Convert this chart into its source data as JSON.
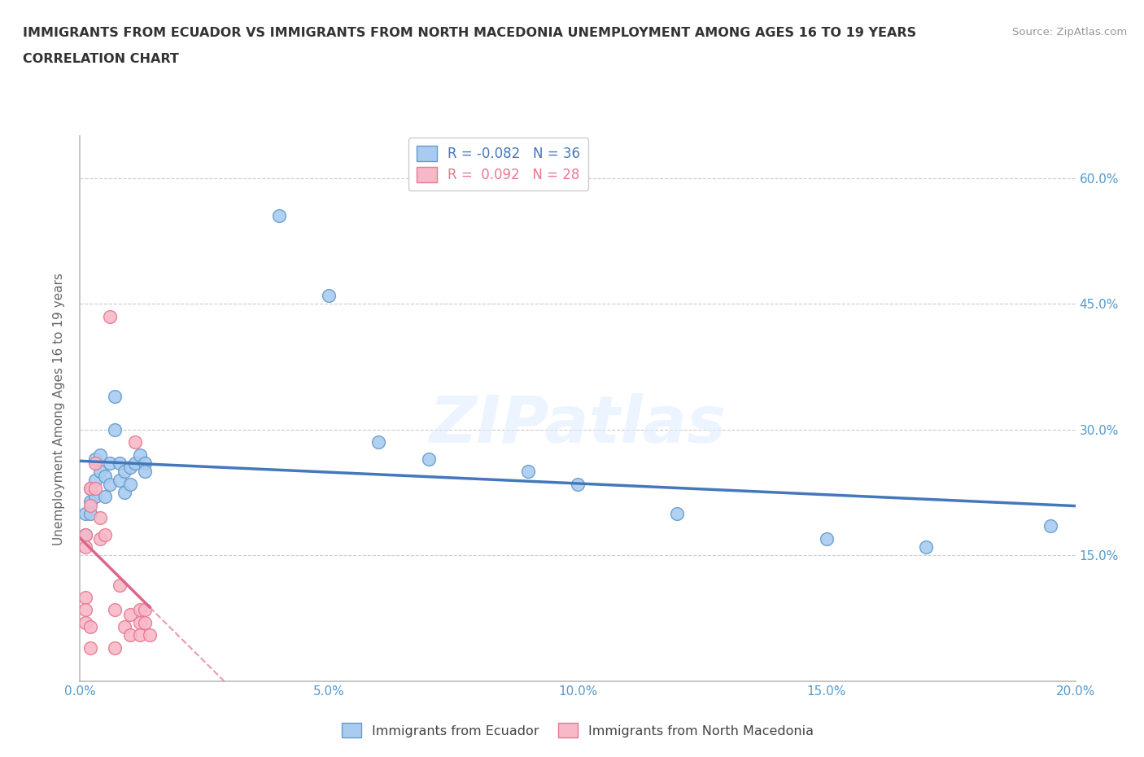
{
  "title_line1": "IMMIGRANTS FROM ECUADOR VS IMMIGRANTS FROM NORTH MACEDONIA UNEMPLOYMENT AMONG AGES 16 TO 19 YEARS",
  "title_line2": "CORRELATION CHART",
  "source": "Source: ZipAtlas.com",
  "ylabel": "Unemployment Among Ages 16 to 19 years",
  "xlim": [
    0.0,
    0.2
  ],
  "ylim": [
    0.0,
    0.65
  ],
  "ytick_positions": [
    0.15,
    0.3,
    0.45,
    0.6
  ],
  "ytick_labels": [
    "15.0%",
    "30.0%",
    "45.0%",
    "60.0%"
  ],
  "xtick_vals": [
    0.0,
    0.025,
    0.05,
    0.075,
    0.1,
    0.125,
    0.15,
    0.175,
    0.2
  ],
  "xtick_labels": [
    "0.0%",
    "",
    "5.0%",
    "",
    "10.0%",
    "",
    "15.0%",
    "",
    "20.0%"
  ],
  "watermark": "ZIPatlas",
  "ecuador_color": "#A8CCF0",
  "ecuador_edge": "#6699CC",
  "macedonia_color": "#F8B8C8",
  "macedonia_edge": "#E87890",
  "ecuador_r": -0.082,
  "ecuador_n": 36,
  "macedonia_r": 0.092,
  "macedonia_n": 28,
  "ecuador_x": [
    0.001,
    0.001,
    0.002,
    0.002,
    0.002,
    0.003,
    0.003,
    0.003,
    0.004,
    0.004,
    0.005,
    0.005,
    0.006,
    0.006,
    0.007,
    0.007,
    0.008,
    0.008,
    0.009,
    0.009,
    0.01,
    0.01,
    0.011,
    0.012,
    0.013,
    0.013,
    0.04,
    0.05,
    0.06,
    0.07,
    0.09,
    0.1,
    0.12,
    0.15,
    0.17,
    0.195
  ],
  "ecuador_y": [
    0.2,
    0.175,
    0.23,
    0.215,
    0.2,
    0.265,
    0.24,
    0.22,
    0.27,
    0.25,
    0.245,
    0.22,
    0.26,
    0.235,
    0.34,
    0.3,
    0.26,
    0.24,
    0.25,
    0.225,
    0.255,
    0.235,
    0.26,
    0.27,
    0.26,
    0.25,
    0.555,
    0.46,
    0.285,
    0.265,
    0.25,
    0.235,
    0.2,
    0.17,
    0.16,
    0.185
  ],
  "macedonia_x": [
    0.001,
    0.001,
    0.001,
    0.001,
    0.001,
    0.002,
    0.002,
    0.002,
    0.002,
    0.003,
    0.003,
    0.004,
    0.004,
    0.005,
    0.006,
    0.007,
    0.007,
    0.008,
    0.009,
    0.01,
    0.01,
    0.011,
    0.012,
    0.012,
    0.012,
    0.013,
    0.013,
    0.014
  ],
  "macedonia_y": [
    0.175,
    0.16,
    0.1,
    0.085,
    0.07,
    0.23,
    0.21,
    0.065,
    0.04,
    0.26,
    0.23,
    0.195,
    0.17,
    0.175,
    0.435,
    0.085,
    0.04,
    0.115,
    0.065,
    0.08,
    0.055,
    0.285,
    0.085,
    0.07,
    0.055,
    0.085,
    0.07,
    0.055
  ],
  "grid_color": "#CCCCCC",
  "title_color": "#333333",
  "axis_color": "#5599CC",
  "legend_box_ecuador": "#A8CCF0",
  "legend_box_macedonia": "#F8B8C8",
  "ecuador_line_color": "#4477BB",
  "macedonia_line_color": "#DD6688",
  "macedonia_dashed_color": "#EE99AA"
}
